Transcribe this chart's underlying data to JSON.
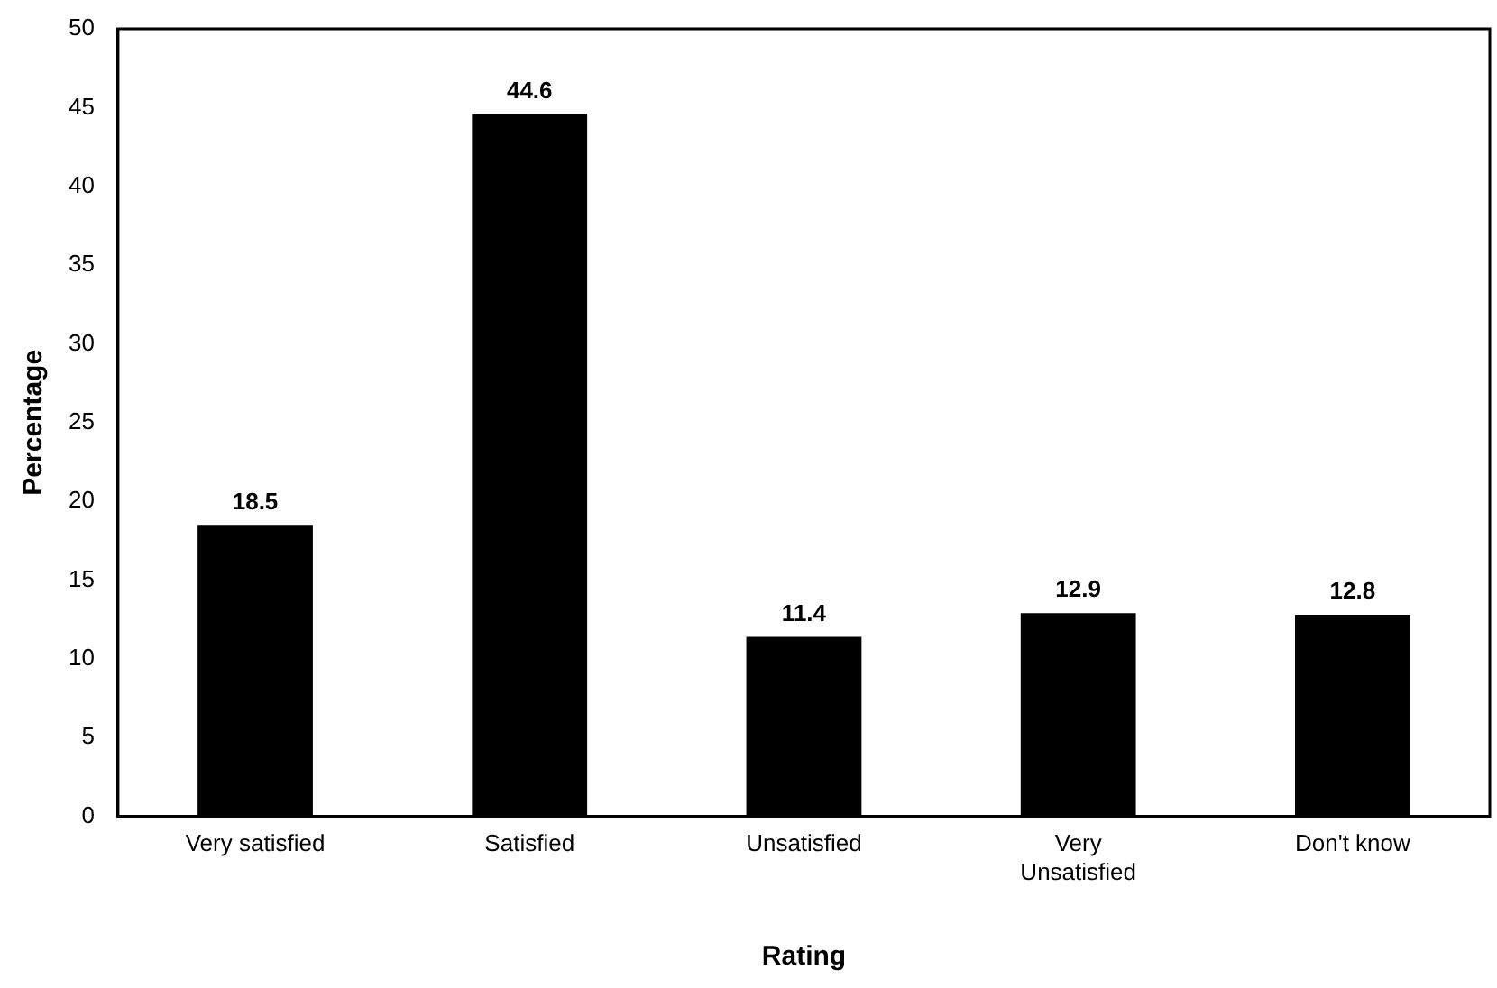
{
  "chart_data": {
    "type": "bar",
    "xlabel": "Rating",
    "ylabel": "Percentage",
    "categories": [
      "Very satisfied",
      "Satisfied",
      "Unsatisfied",
      "Very Unsatisfied",
      "Don't know"
    ],
    "values": [
      18.5,
      44.6,
      11.4,
      12.9,
      12.8
    ],
    "color": "#000000",
    "ylim": [
      0,
      50
    ],
    "yticks": [
      0,
      5,
      10,
      15,
      20,
      25,
      30,
      35,
      40,
      45,
      50
    ],
    "grid": false,
    "legend": false,
    "data_labels": true
  }
}
